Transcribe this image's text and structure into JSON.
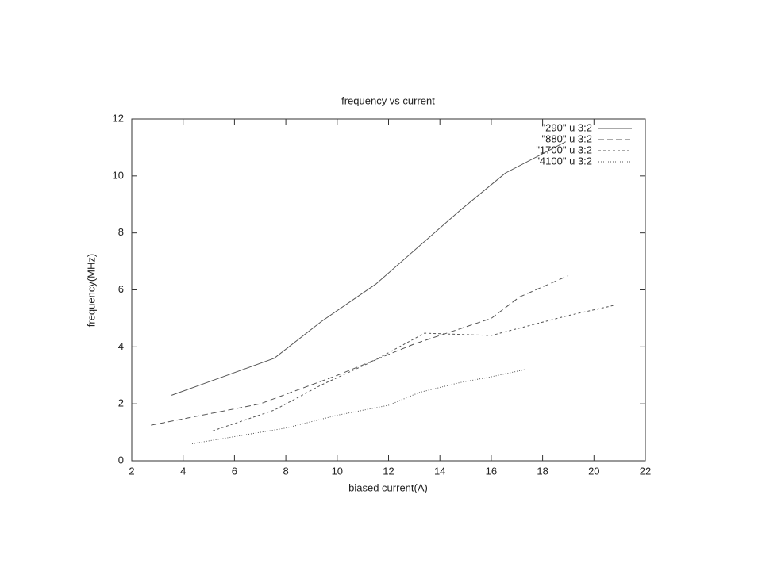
{
  "chart_data": {
    "type": "line",
    "title": "frequency vs current",
    "x_label": "biased current(A)",
    "y_label": "frequency(MHz)",
    "xlim": [
      2,
      22
    ],
    "xticks": [
      2,
      4,
      6,
      8,
      10,
      12,
      14,
      16,
      18,
      20,
      22
    ],
    "ylim": [
      0,
      12
    ],
    "yticks": [
      0,
      2,
      4,
      6,
      8,
      10,
      12
    ],
    "legend": "top right",
    "series": [
      {
        "name": "\"290\" u 3:2",
        "color": "#555555",
        "dash": "none",
        "x": [
          3.55,
          7.55,
          9.4,
          11.5,
          14.8,
          16.55,
          18.9
        ],
        "values": [
          2.3,
          3.6,
          4.9,
          6.2,
          8.8,
          10.1,
          11.2
        ]
      },
      {
        "name": "\"880\" u 3:2",
        "color": "#555555",
        "dash": "7,4",
        "x": [
          2.75,
          7.0,
          10.0,
          13.0,
          16.0,
          17.1,
          19.0
        ],
        "values": [
          1.25,
          2.0,
          3.0,
          4.1,
          5.0,
          5.75,
          6.5
        ]
      },
      {
        "name": "\"1700\" u 3:2",
        "color": "#555555",
        "dash": "3,3",
        "x": [
          5.15,
          7.55,
          9.4,
          11.4,
          13.4,
          16.0,
          17.5,
          19.0,
          20.75
        ],
        "values": [
          1.05,
          1.78,
          2.67,
          3.5,
          4.48,
          4.4,
          4.75,
          5.1,
          5.45
        ]
      },
      {
        "name": "\"4100\" u 3:2",
        "color": "#555555",
        "dash": "1,2",
        "x": [
          4.35,
          6.0,
          8.0,
          10.0,
          12.0,
          13.2,
          14.8,
          16.0,
          17.3
        ],
        "values": [
          0.6,
          0.85,
          1.15,
          1.6,
          1.95,
          2.4,
          2.75,
          2.95,
          3.2
        ]
      }
    ]
  }
}
